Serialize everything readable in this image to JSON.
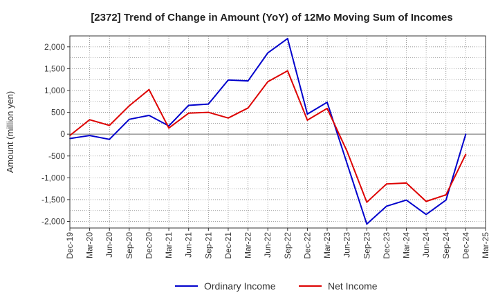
{
  "chart_data": {
    "type": "line",
    "title": "[2372]  Trend of Change in Amount (YoY) of 12Mo Moving Sum of Incomes",
    "xlabel": "",
    "ylabel": "Amount (million yen)",
    "ylim": [
      -2150,
      2250
    ],
    "yticks": [
      2000,
      1500,
      1000,
      500,
      0,
      -500,
      -1000,
      -1500,
      -2000
    ],
    "ytick_labels": [
      "2,000",
      "1,500",
      "1,000",
      "500",
      "0",
      "-500",
      "-1,000",
      "-1,500",
      "-2,000"
    ],
    "categories": [
      "Dec-19",
      "Mar-20",
      "Jun-20",
      "Sep-20",
      "Dec-20",
      "Mar-21",
      "Jun-21",
      "Sep-21",
      "Dec-21",
      "Mar-22",
      "Jun-22",
      "Sep-22",
      "Dec-22",
      "Mar-23",
      "Jun-23",
      "Sep-23",
      "Dec-23",
      "Mar-24",
      "Jun-24",
      "Sep-24",
      "Dec-24",
      "Mar-25"
    ],
    "grid": true,
    "legend_position": "bottom",
    "series": [
      {
        "name": "Ordinary Income",
        "color": "#0000cc",
        "values": [
          -100,
          -30,
          -120,
          340,
          430,
          190,
          660,
          690,
          1240,
          1220,
          1860,
          2190,
          460,
          730,
          -670,
          -2060,
          -1650,
          -1510,
          -1840,
          -1510,
          0,
          null
        ]
      },
      {
        "name": "Net Income",
        "color": "#dd0000",
        "values": [
          -30,
          330,
          200,
          650,
          1020,
          140,
          480,
          500,
          370,
          600,
          1200,
          1450,
          320,
          590,
          -390,
          -1560,
          -1140,
          -1120,
          -1540,
          -1390,
          -460,
          null
        ]
      }
    ]
  }
}
